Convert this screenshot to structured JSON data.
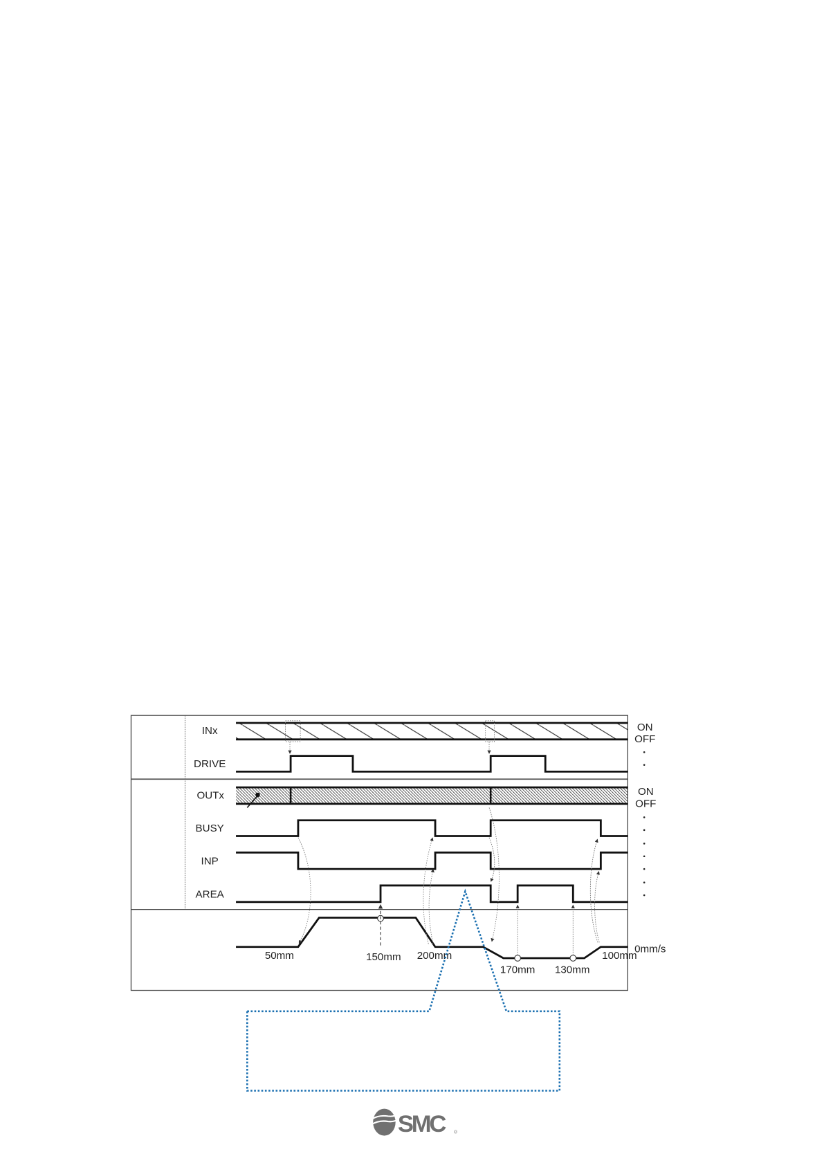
{
  "signals": {
    "inputs": [
      "INx",
      "DRIVE"
    ],
    "outputs": [
      "OUTx",
      "BUSY",
      "INP",
      "AREA"
    ]
  },
  "states": {
    "on": "ON",
    "off": "OFF"
  },
  "positions": {
    "p50": "50mm",
    "p150": "150mm",
    "p200": "200mm",
    "p170": "170mm",
    "p130": "130mm",
    "p100": "100mm"
  },
  "speed_zero": "0mm/s",
  "logo": "SMC",
  "colors": {
    "callout": "#1a6fb0",
    "signal": "#111111",
    "logo": "#707070"
  }
}
